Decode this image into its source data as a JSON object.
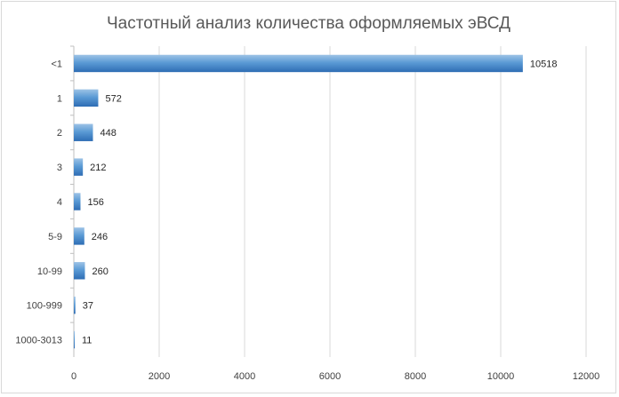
{
  "chart_data": {
    "type": "bar",
    "orientation": "horizontal",
    "title": "Частотный анализ количества оформляемых эВСД",
    "categories": [
      "<1",
      "1",
      "2",
      "3",
      "4",
      "5-9",
      "10-99",
      "100-999",
      "1000-3013"
    ],
    "values": [
      10518,
      572,
      448,
      212,
      156,
      246,
      260,
      37,
      11
    ],
    "xlabel": "",
    "ylabel": "",
    "xlim": [
      0,
      12000
    ],
    "xticks": [
      0,
      2000,
      4000,
      6000,
      8000,
      10000,
      12000
    ],
    "grid": "vertical",
    "legend": "none",
    "data_labels": true,
    "colors": {
      "bar_top": "#9dc3e6",
      "bar_mid": "#5b9bd5",
      "bar_bottom": "#2e6db4",
      "grid": "#d9d9d9",
      "axis": "#bfbfbf"
    }
  }
}
